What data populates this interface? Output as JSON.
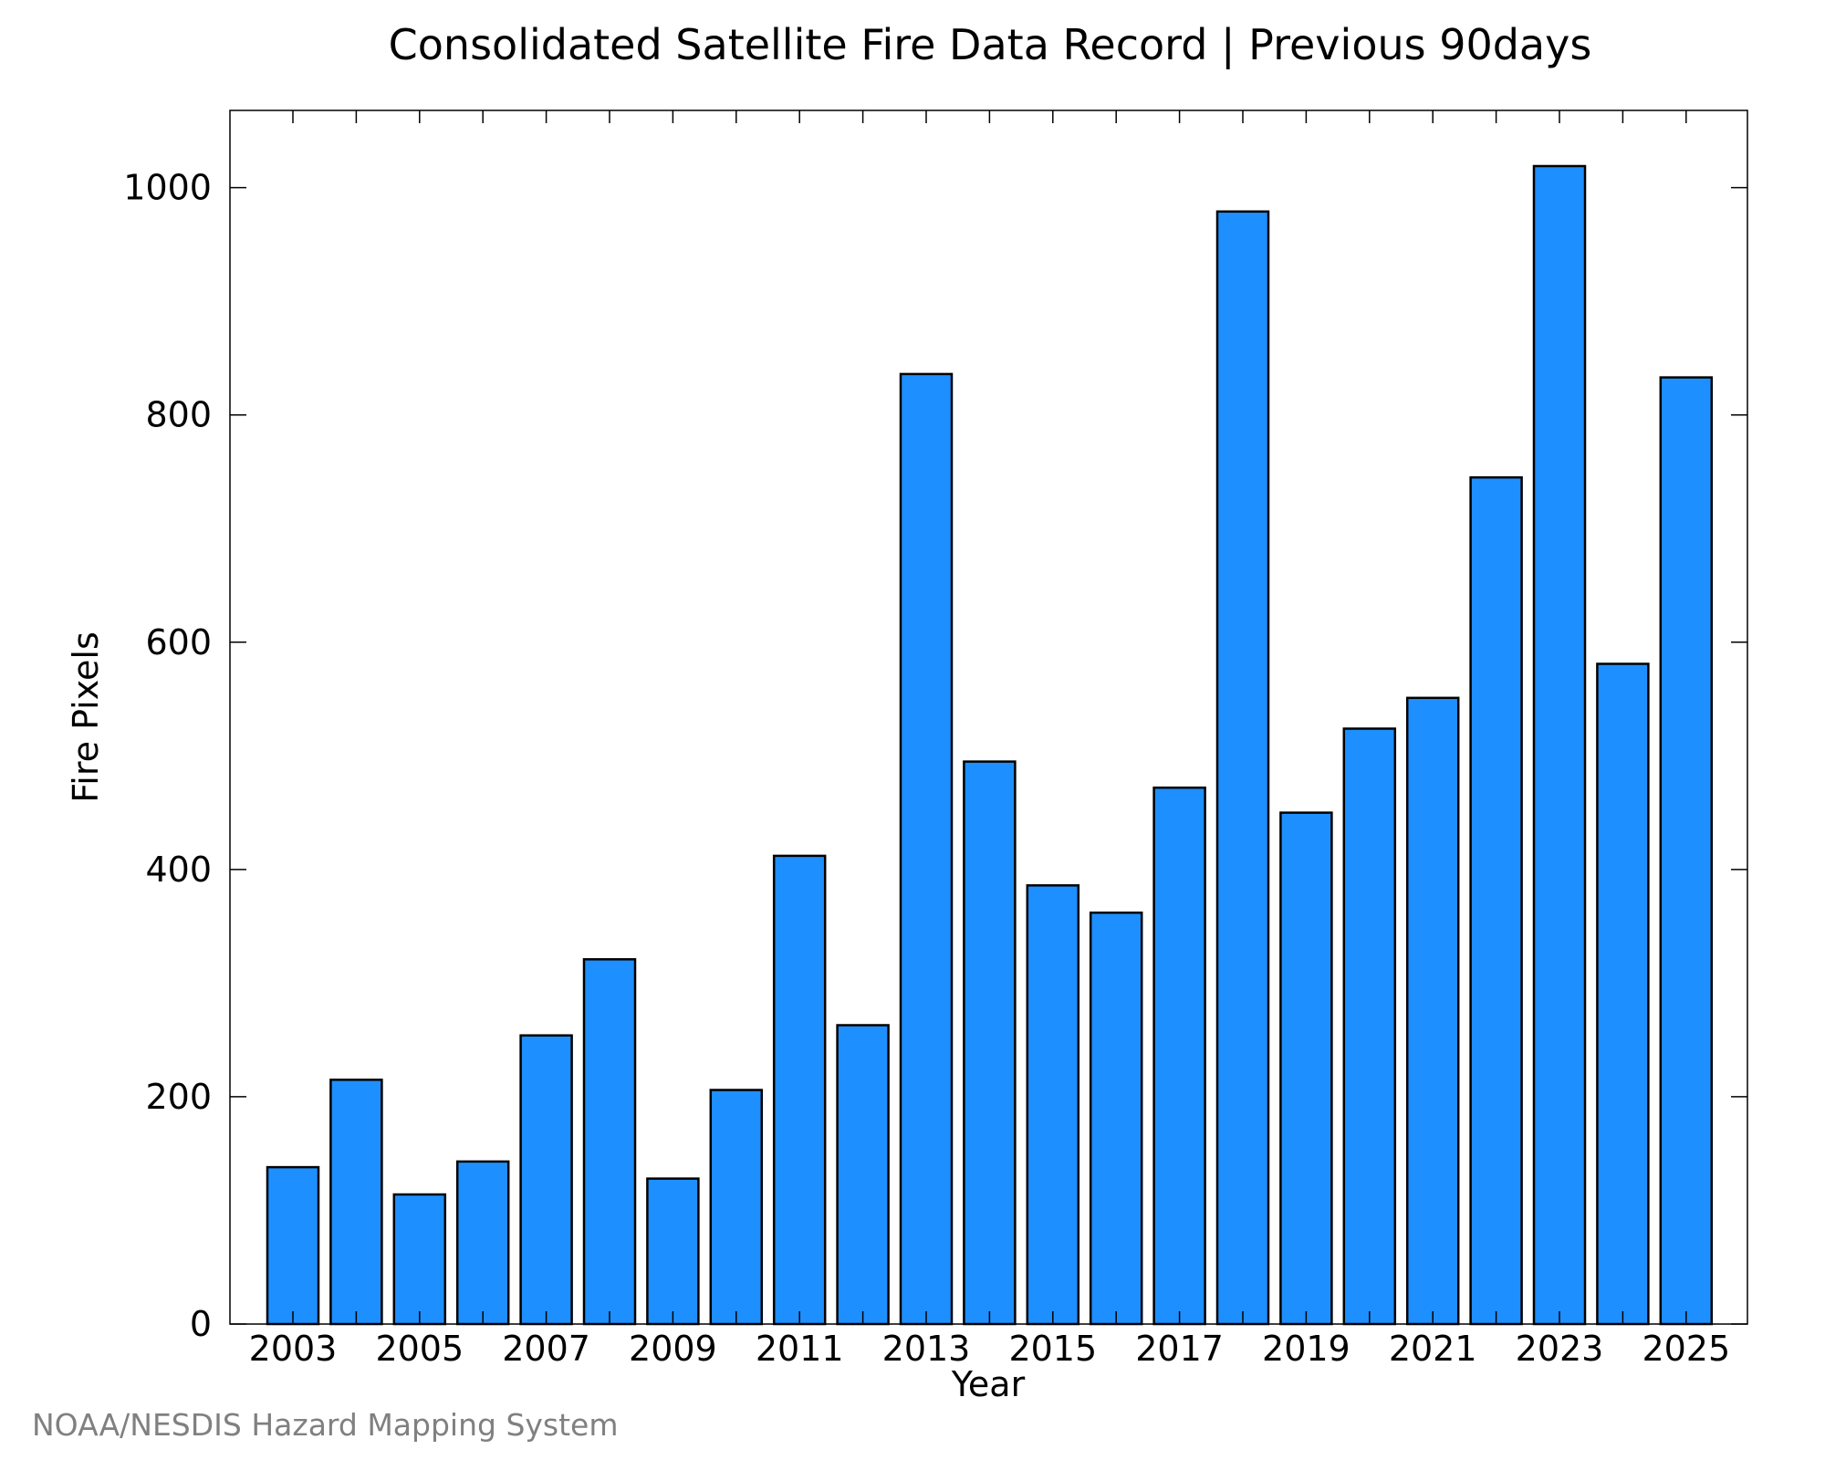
{
  "chart_data": {
    "type": "bar",
    "title": "Consolidated Satellite Fire Data Record | Previous 90days",
    "xlabel": "Year",
    "ylabel": "Fire Pixels",
    "categories": [
      "2003",
      "2004",
      "2005",
      "2006",
      "2007",
      "2008",
      "2009",
      "2010",
      "2011",
      "2012",
      "2013",
      "2014",
      "2015",
      "2016",
      "2017",
      "2018",
      "2019",
      "2020",
      "2021",
      "2022",
      "2023",
      "2024",
      "2025"
    ],
    "values": [
      138,
      215,
      114,
      143,
      254,
      321,
      128,
      206,
      412,
      263,
      836,
      495,
      386,
      362,
      472,
      979,
      450,
      524,
      551,
      745,
      1019,
      581,
      833
    ],
    "x_tick_labels": [
      "2003",
      "2005",
      "2007",
      "2009",
      "2011",
      "2013",
      "2015",
      "2017",
      "2019",
      "2021",
      "2023",
      "2025"
    ],
    "y_ticks": [
      0,
      200,
      400,
      600,
      800,
      1000
    ],
    "ylim": [
      0,
      1068
    ],
    "bar_color": "#1E8FFF",
    "bar_edge_color": "#000000",
    "grid": false,
    "legend": null
  },
  "footer": {
    "credit": "NOAA/NESDIS Hazard Mapping System"
  }
}
